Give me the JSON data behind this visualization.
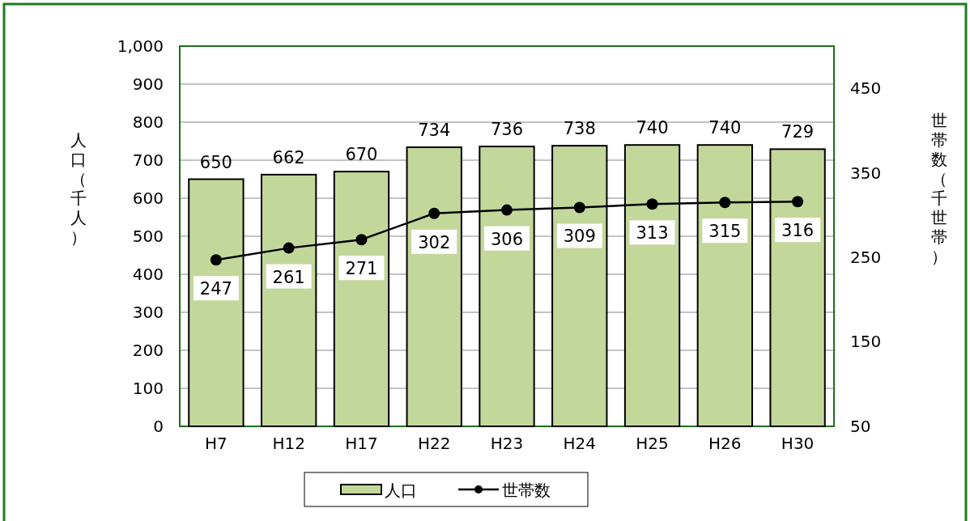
{
  "chart_data": {
    "type": "bar",
    "ylabel": "人口（千人）",
    "y2label": "世帯数（千世帯）",
    "categories": [
      "H7",
      "H12",
      "H17",
      "H22",
      "H23",
      "H24",
      "H25",
      "H26",
      "H30"
    ],
    "series": [
      {
        "name": "人口",
        "color": "#c4d79b",
        "values": [
          650,
          662,
          670,
          734,
          736,
          738,
          740,
          740,
          729
        ]
      },
      {
        "name": "世帯数",
        "type": "line",
        "axis": "y2",
        "color": "#000000",
        "values": [
          247,
          261,
          271,
          302,
          306,
          309,
          313,
          315,
          316
        ]
      }
    ],
    "ylim": [
      0,
      1000
    ],
    "yticks": [
      0,
      100,
      200,
      300,
      400,
      500,
      600,
      700,
      800,
      900,
      {
        "value": 1000,
        "label": "1,000"
      }
    ],
    "y2lim": [
      50,
      500
    ],
    "y2ticks": [
      50,
      150,
      250,
      350,
      450
    ],
    "grid": "y",
    "legend": "bottom",
    "data_labels": true,
    "marker": "circle",
    "line_style": "solid"
  }
}
